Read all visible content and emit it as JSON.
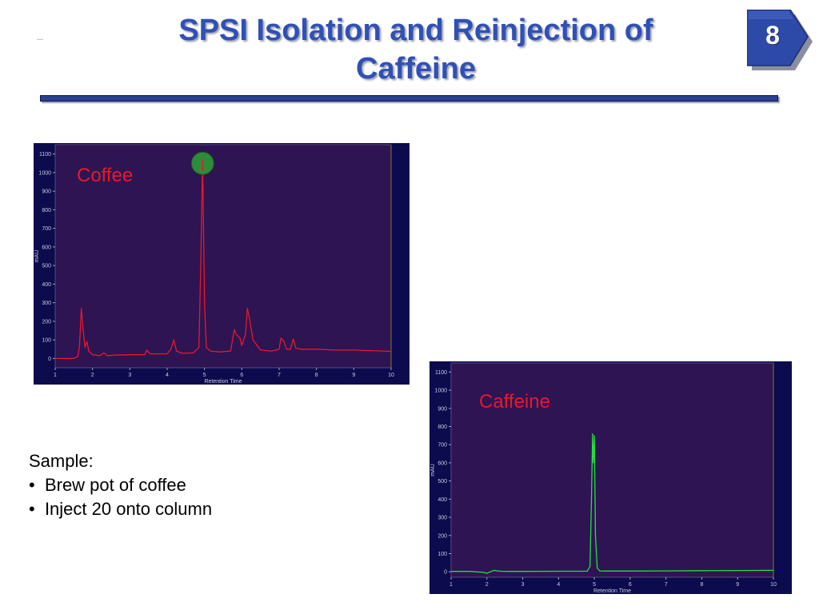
{
  "slide": {
    "title_line1": "SPSI Isolation and Reinjection of",
    "title_line2": "Caffeine",
    "number": "8"
  },
  "sample": {
    "heading": "Sample:",
    "bullets": [
      "Brew pot of coffee",
      "Inject 20 onto column"
    ]
  },
  "colors": {
    "title": "#3050b4",
    "plot_background": "#2e1452",
    "frame": "#0b0b4d",
    "coffee_trace": "#e8182c",
    "caffeine_trace": "#22e040",
    "marker": "#2e8b3a"
  },
  "chart_data": [
    {
      "type": "line",
      "annotation": "Coffee",
      "xlabel": "Retention Time",
      "ylabel": "mAU",
      "xlim": [
        1,
        10
      ],
      "ylim": [
        -50,
        1150
      ],
      "xticks": [
        1,
        2,
        3,
        4,
        5,
        6,
        7,
        8,
        9,
        10
      ],
      "yticks": [
        0,
        100,
        200,
        300,
        400,
        500,
        600,
        700,
        800,
        900,
        1000,
        1100
      ],
      "marker": {
        "x": 4.95,
        "y": 1050
      },
      "series": [
        {
          "color": "#e8182c",
          "x": [
            1.0,
            1.5,
            1.6,
            1.65,
            1.7,
            1.75,
            1.8,
            1.85,
            1.9,
            2.0,
            2.1,
            2.2,
            2.3,
            2.4,
            2.6,
            3.0,
            3.4,
            3.45,
            3.55,
            3.7,
            4.0,
            4.1,
            4.18,
            4.25,
            4.4,
            4.7,
            4.85,
            4.9,
            4.95,
            5.0,
            5.05,
            5.15,
            5.4,
            5.7,
            5.8,
            5.85,
            5.95,
            6.0,
            6.1,
            6.15,
            6.2,
            6.3,
            6.5,
            6.8,
            7.0,
            7.05,
            7.12,
            7.2,
            7.3,
            7.38,
            7.45,
            7.6,
            8.0,
            8.5,
            9.0,
            9.5,
            10.0
          ],
          "y": [
            0,
            0,
            10,
            60,
            270,
            150,
            60,
            90,
            40,
            20,
            18,
            15,
            30,
            15,
            18,
            20,
            20,
            45,
            25,
            25,
            25,
            50,
            100,
            40,
            28,
            30,
            60,
            500,
            1070,
            300,
            60,
            40,
            35,
            40,
            155,
            130,
            110,
            70,
            130,
            270,
            220,
            100,
            45,
            40,
            50,
            110,
            95,
            50,
            48,
            105,
            55,
            50,
            50,
            45,
            45,
            42,
            38
          ]
        }
      ]
    },
    {
      "type": "line",
      "annotation": "Caffeine",
      "xlabel": "Retention Time",
      "ylabel": "mAU",
      "xlim": [
        1,
        10
      ],
      "ylim": [
        -30,
        1150
      ],
      "xticks": [
        1,
        2,
        3,
        4,
        5,
        6,
        7,
        8,
        9,
        10
      ],
      "yticks": [
        0,
        100,
        200,
        300,
        400,
        500,
        600,
        700,
        800,
        900,
        1000,
        1100
      ],
      "series": [
        {
          "color": "#22e040",
          "x": [
            1.0,
            1.5,
            1.9,
            2.0,
            2.1,
            2.2,
            2.3,
            2.4,
            2.6,
            3.0,
            4.0,
            4.8,
            4.88,
            4.92,
            4.95,
            4.97,
            5.0,
            5.03,
            5.08,
            5.15,
            5.3,
            6.0,
            7.0,
            8.0,
            9.0,
            10.0
          ],
          "y": [
            2,
            2,
            -3,
            -8,
            0,
            8,
            5,
            3,
            2,
            2,
            3,
            3,
            30,
            400,
            760,
            600,
            750,
            200,
            20,
            5,
            4,
            4,
            5,
            6,
            7,
            8
          ]
        }
      ]
    }
  ]
}
